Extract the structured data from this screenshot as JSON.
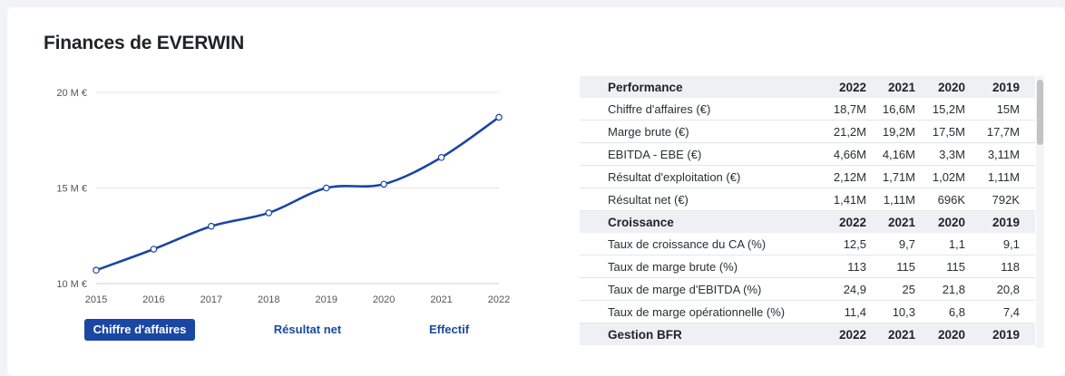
{
  "header": {
    "title": "Finances de EVERWIN"
  },
  "chart_data": {
    "type": "line",
    "categories": [
      "2015",
      "2016",
      "2017",
      "2018",
      "2019",
      "2020",
      "2021",
      "2022"
    ],
    "series": [
      {
        "values": [
          10.7,
          11.8,
          13.0,
          13.7,
          15.0,
          15.2,
          16.6,
          18.7
        ]
      }
    ],
    "y_ticks": [
      "10 M €",
      "15 M €",
      "20 M €"
    ],
    "y_tick_values": [
      10,
      15,
      20
    ],
    "ylim": [
      10,
      20
    ],
    "grid": true,
    "line_color": "#1a45a3"
  },
  "tabs": [
    {
      "label": "Chiffre d'affaires",
      "active": true
    },
    {
      "label": "Résultat net",
      "active": false
    },
    {
      "label": "Effectif",
      "active": false
    }
  ],
  "table": {
    "sections": [
      {
        "title": "Performance",
        "years": [
          "2022",
          "2021",
          "2020",
          "2019"
        ],
        "rows": [
          {
            "label": "Chiffre d'affaires (€)",
            "values": [
              "18,7M",
              "16,6M",
              "15,2M",
              "15M"
            ]
          },
          {
            "label": "Marge brute (€)",
            "values": [
              "21,2M",
              "19,2M",
              "17,5M",
              "17,7M"
            ]
          },
          {
            "label": "EBITDA - EBE (€)",
            "values": [
              "4,66M",
              "4,16M",
              "3,3M",
              "3,11M"
            ]
          },
          {
            "label": "Résultat d'exploitation (€)",
            "values": [
              "2,12M",
              "1,71M",
              "1,02M",
              "1,11M"
            ]
          },
          {
            "label": "Résultat net (€)",
            "values": [
              "1,41M",
              "1,11M",
              "696K",
              "792K"
            ]
          }
        ]
      },
      {
        "title": "Croissance",
        "years": [
          "2022",
          "2021",
          "2020",
          "2019"
        ],
        "rows": [
          {
            "label": "Taux de croissance du CA (%)",
            "values": [
              "12,5",
              "9,7",
              "1,1",
              "9,1"
            ]
          },
          {
            "label": "Taux de marge brute (%)",
            "values": [
              "113",
              "115",
              "115",
              "118"
            ]
          },
          {
            "label": "Taux de marge d'EBITDA (%)",
            "values": [
              "24,9",
              "25",
              "21,8",
              "20,8"
            ]
          },
          {
            "label": "Taux de marge opérationnelle (%)",
            "values": [
              "11,4",
              "10,3",
              "6,8",
              "7,4"
            ]
          }
        ]
      },
      {
        "title": "Gestion BFR",
        "years": [
          "2022",
          "2021",
          "2020",
          "2019"
        ],
        "rows": []
      }
    ]
  }
}
